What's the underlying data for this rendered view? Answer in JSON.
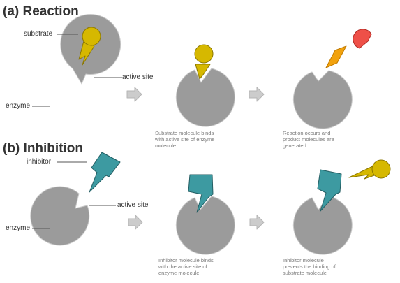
{
  "colors": {
    "enzyme": "#9b9b9b",
    "substrate": "#d6b800",
    "substrate_stroke": "#8a7600",
    "inhibitor": "#3d9aa1",
    "inhibitor_stroke": "#245e63",
    "product_diamond": "#f2a20d",
    "product_circle": "#ee5048",
    "arrow": "#cccccc",
    "leader": "#555555"
  },
  "reaction": {
    "title": "(a) Reaction",
    "substrate_label": "substrate",
    "active_site_label": "active site",
    "enzyme_label": "enzyme",
    "caption_bind": [
      "Substrate molecule binds",
      "with active site of enzyme",
      "molecule"
    ],
    "caption_products": [
      "Reaction occurs and",
      "product molecules are",
      "generated"
    ]
  },
  "inhibition": {
    "title": "(b) Inhibition",
    "inhibitor_label": "inhibitor",
    "active_site_label": "active site",
    "enzyme_label": "enzyme",
    "caption_bind": [
      "Inhibitor molecule binds",
      "with the active site of",
      "enzyme molecule"
    ],
    "caption_prevent": [
      "Inhibitor molecule",
      "prevents the binding of",
      "substrate molecule"
    ]
  }
}
